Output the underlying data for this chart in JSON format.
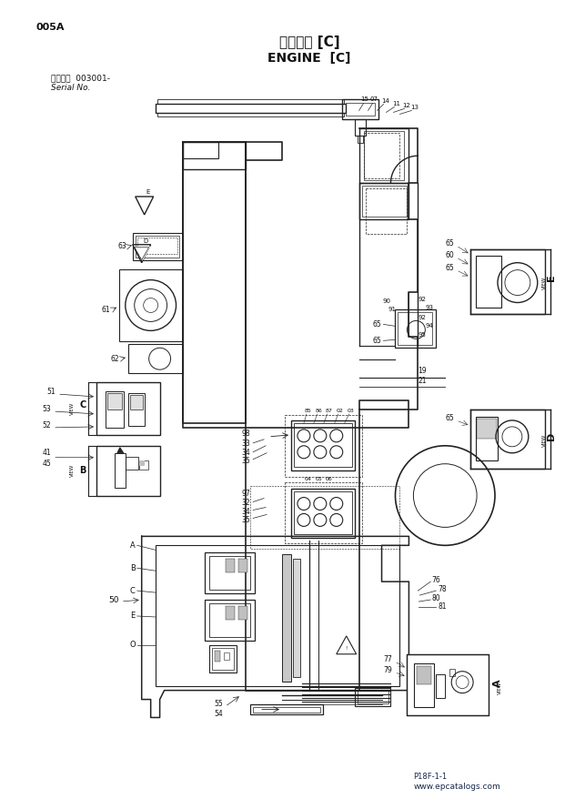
{
  "title_jp": "エンジン [C]",
  "title_en": "ENGINE  [C]",
  "page_id": "005A",
  "serial_label": "適用号機  003001-",
  "serial_no": "Serial No.",
  "page_ref": "P18F-1-1",
  "website": "www.epcatalogs.com",
  "bg_color": "#ffffff",
  "line_color": "#222222",
  "text_color": "#111111"
}
